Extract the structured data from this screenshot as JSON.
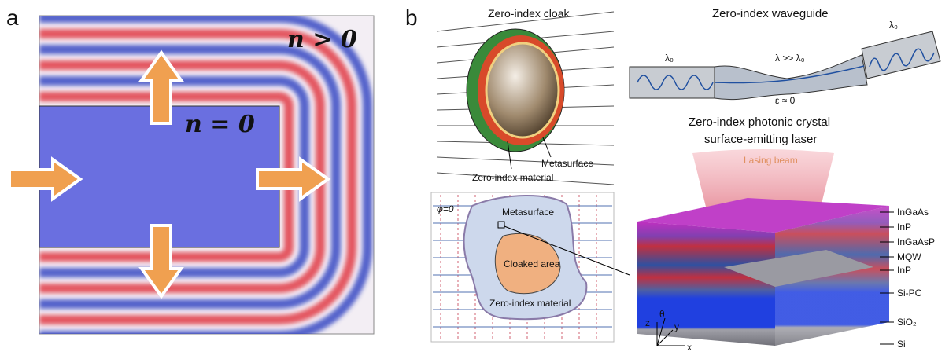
{
  "panel_a": {
    "label": "a",
    "outer_region": "n > 0",
    "inner_region": "n = 0"
  },
  "panel_b": {
    "label": "b",
    "cloak": {
      "title": "Zero-index cloak",
      "labels": [
        "Metasurface",
        "Zero-index material"
      ]
    },
    "cloak_map": {
      "potential": "φ=0",
      "labels": [
        "Metasurface",
        "Cloaked area",
        "Zero-index material"
      ]
    },
    "waveguide": {
      "title": "Zero-index waveguide",
      "input_wavelength": "λ₀",
      "output_wavelength": "λ₀",
      "inner_wavelength": "λ >> λ₀",
      "permittivity": "ε ≈ 0"
    },
    "laser": {
      "title_lines": [
        "Zero-index photonic crystal",
        "surface-emitting laser"
      ],
      "beam": "Lasing beam",
      "layers": [
        "InGaAs",
        "InP",
        "InGaAsP",
        "MQW",
        "InP",
        "Si-PC",
        "SiO₂",
        "Si"
      ],
      "axes": [
        "z",
        "θ",
        "y",
        "x"
      ]
    }
  }
}
